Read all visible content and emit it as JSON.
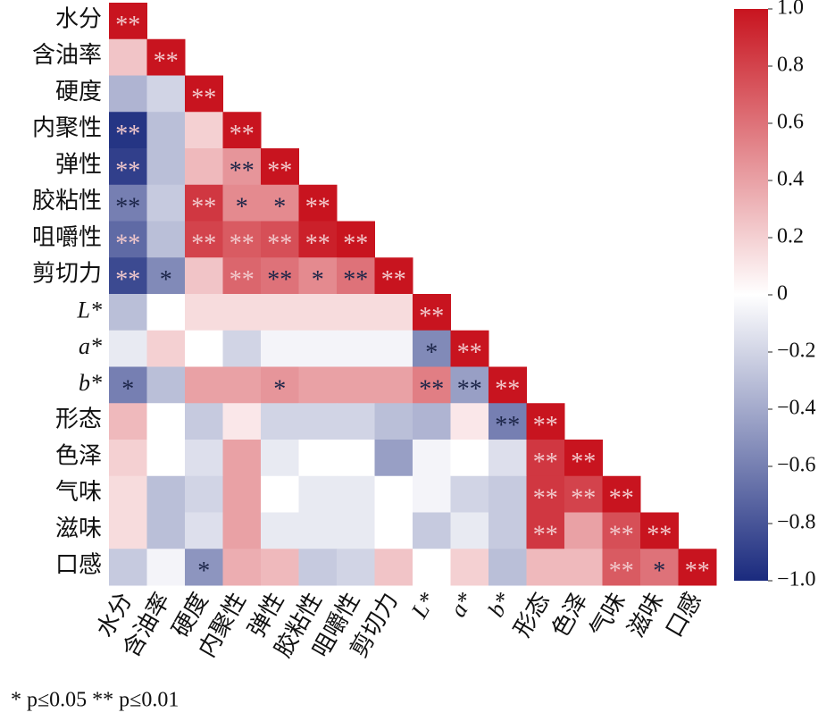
{
  "chart_data": {
    "type": "heatmap",
    "categories": [
      "水分",
      "含油率",
      "硬度",
      "内聚性",
      "弹性",
      "胶粘性",
      "咀嚼性",
      "剪切力",
      "L*",
      "a*",
      "b*",
      "形态",
      "色泽",
      "气味",
      "滋味",
      "口感"
    ],
    "values": [
      [
        1
      ],
      [
        0.25,
        1
      ],
      [
        -0.35,
        -0.2,
        1
      ],
      [
        -0.95,
        -0.3,
        0.2,
        1
      ],
      [
        -0.9,
        -0.3,
        0.3,
        0.45,
        1
      ],
      [
        -0.6,
        -0.25,
        0.85,
        0.5,
        0.5,
        1
      ],
      [
        -0.7,
        -0.3,
        0.8,
        0.7,
        0.75,
        0.95,
        1
      ],
      [
        -0.85,
        -0.55,
        0.25,
        0.65,
        0.6,
        0.5,
        0.6,
        1
      ],
      [
        -0.3,
        0,
        0.15,
        0.15,
        0.15,
        0.15,
        0.15,
        0.15,
        1
      ],
      [
        -0.1,
        0.2,
        0,
        -0.2,
        -0.05,
        -0.05,
        -0.05,
        -0.05,
        -0.55,
        1
      ],
      [
        -0.6,
        -0.3,
        0.4,
        0.4,
        0.45,
        0.4,
        0.4,
        0.4,
        0.55,
        -0.45,
        1
      ],
      [
        0.3,
        0,
        -0.25,
        0.1,
        -0.2,
        -0.2,
        -0.2,
        -0.3,
        -0.35,
        0.1,
        -0.6,
        1
      ],
      [
        0.2,
        0,
        -0.15,
        0.4,
        -0.1,
        0,
        0,
        -0.45,
        -0.05,
        0,
        -0.15,
        0.85,
        1
      ],
      [
        0.15,
        -0.3,
        -0.2,
        0.4,
        0,
        -0.1,
        -0.1,
        0,
        -0.05,
        -0.2,
        -0.25,
        0.85,
        0.8,
        1
      ],
      [
        0.15,
        -0.3,
        -0.15,
        0.4,
        -0.1,
        -0.1,
        -0.1,
        0,
        -0.25,
        -0.1,
        -0.25,
        0.85,
        0.4,
        0.75,
        1
      ],
      [
        -0.25,
        -0.05,
        -0.5,
        0.35,
        0.3,
        -0.25,
        -0.2,
        0.25,
        0,
        0.2,
        -0.3,
        0.3,
        0.3,
        0.7,
        0.6,
        1
      ]
    ],
    "annotations": [
      [
        "**"
      ],
      [
        null,
        "**"
      ],
      [
        null,
        null,
        "**"
      ],
      [
        "**",
        null,
        null,
        "**"
      ],
      [
        "**",
        null,
        null,
        "**",
        "**"
      ],
      [
        "**",
        null,
        "**",
        "*",
        "*",
        "**"
      ],
      [
        "**",
        null,
        "**",
        "**",
        "**",
        "**",
        "**"
      ],
      [
        "**",
        "*",
        null,
        "**",
        "**",
        "*",
        "**",
        "**"
      ],
      [
        null,
        null,
        null,
        null,
        null,
        null,
        null,
        null,
        "**"
      ],
      [
        null,
        null,
        null,
        null,
        null,
        null,
        null,
        null,
        "*",
        "**"
      ],
      [
        "*",
        null,
        null,
        null,
        "*",
        null,
        null,
        null,
        "**",
        "**",
        "**"
      ],
      [
        null,
        null,
        null,
        null,
        null,
        null,
        null,
        null,
        null,
        null,
        "**",
        "**"
      ],
      [
        null,
        null,
        null,
        null,
        null,
        null,
        null,
        null,
        null,
        null,
        null,
        "**",
        "**"
      ],
      [
        null,
        null,
        null,
        null,
        null,
        null,
        null,
        null,
        null,
        null,
        null,
        "**",
        "**",
        "**"
      ],
      [
        null,
        null,
        null,
        null,
        null,
        null,
        null,
        null,
        null,
        null,
        null,
        "**",
        null,
        "**",
        "**"
      ],
      [
        null,
        null,
        "*",
        null,
        null,
        null,
        null,
        null,
        null,
        null,
        null,
        null,
        null,
        "**",
        "*",
        "**"
      ]
    ],
    "zlim": [
      -1,
      1
    ],
    "colors": [
      "#1a2a7e",
      "#ffffff",
      "#c8141f"
    ],
    "zticks": [
      {
        "value": 1,
        "label": "1.0"
      },
      0.8,
      0.6,
      0.4,
      0.2,
      0,
      {
        "value": -0.2,
        "label": "−0.2"
      },
      {
        "value": -0.4,
        "label": "−0.4"
      },
      {
        "value": -0.6,
        "label": "−0.6"
      },
      {
        "value": -0.8,
        "label": "−0.8"
      },
      {
        "value": -1,
        "label": "−1.0"
      }
    ],
    "note": "* p≤0.05  ** p≤0.01"
  }
}
